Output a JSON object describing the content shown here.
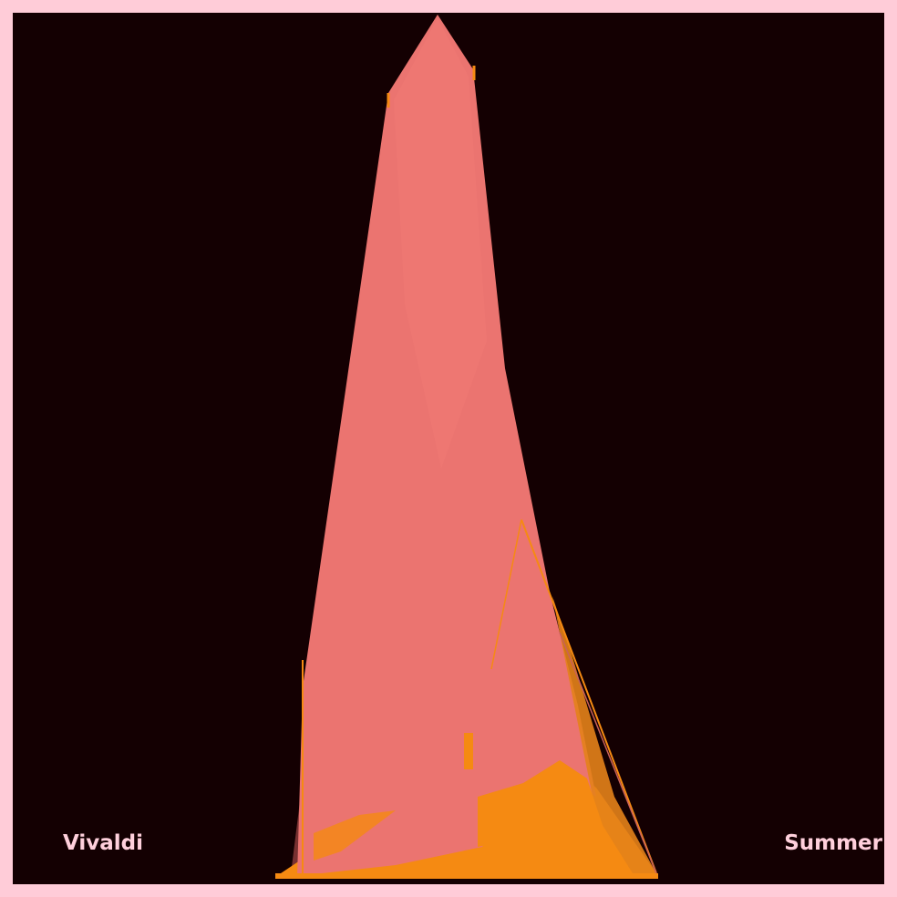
{
  "artwork": {
    "left_caption": "Vivaldi",
    "right_caption": "Summer"
  },
  "colors": {
    "frame": "#FFCCD8",
    "background": "#140002",
    "peak_fill": "#EB7470",
    "peak_shadow": "#8A3A3A",
    "base_fill": "#F58A12",
    "caption": "#FFD0DC"
  }
}
